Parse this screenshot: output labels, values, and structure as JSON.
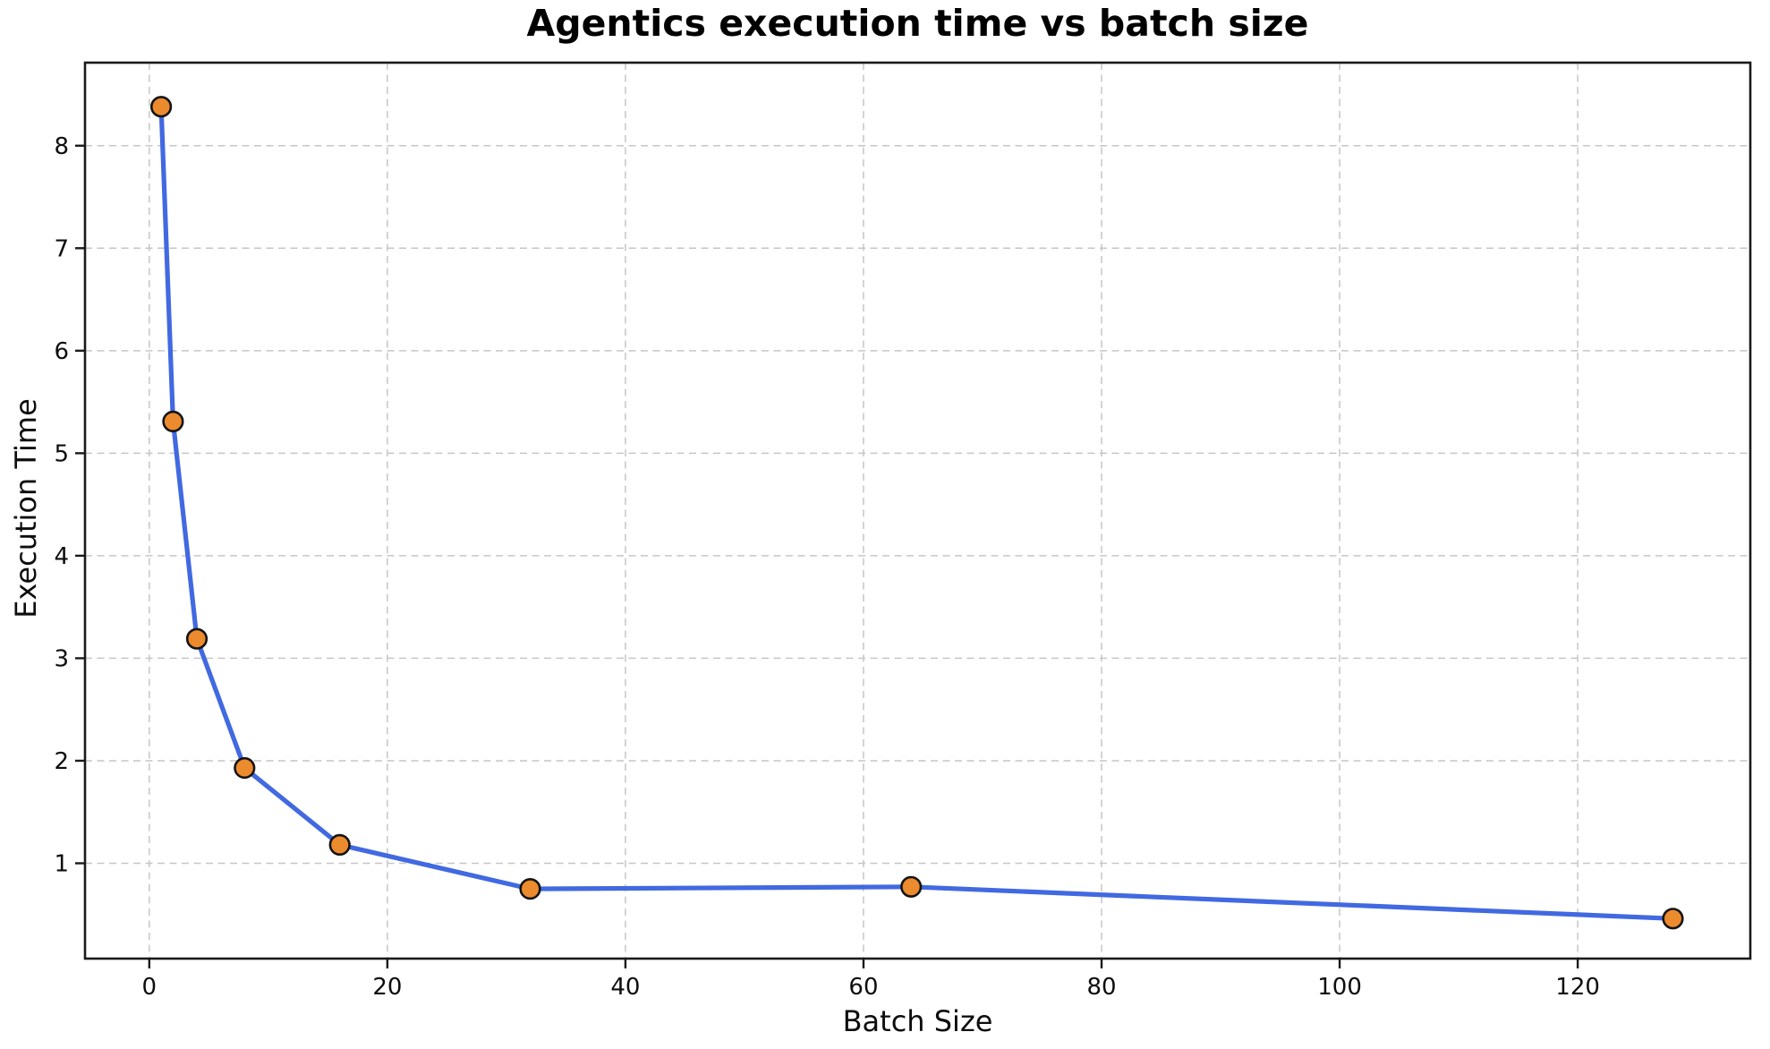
{
  "chart_data": {
    "type": "line",
    "title": "Agentics execution time vs batch size",
    "xlabel": "Batch Size",
    "ylabel": "Execution Time",
    "x": [
      1,
      2,
      4,
      8,
      16,
      32,
      64,
      128
    ],
    "series": [
      {
        "name": "Execution Time",
        "values": [
          8.38,
          5.31,
          3.19,
          1.93,
          1.18,
          0.75,
          0.77,
          0.46
        ]
      }
    ],
    "xlim": [
      -5.4,
      134.5
    ],
    "ylim": [
      0.07,
      8.81
    ],
    "x_ticks": [
      0,
      20,
      40,
      60,
      80,
      100,
      120
    ],
    "y_ticks": [
      1,
      2,
      3,
      4,
      5,
      6,
      7,
      8
    ],
    "grid": "dashed",
    "legend": "none",
    "colors": {
      "line": "#4169e1",
      "marker_fill": "#ec8a2e",
      "marker_edge": "#141414",
      "grid": "#c6c6c6",
      "spine": "#1a1a1a",
      "tick_text": "#0d0d0d",
      "background": "#ffffff"
    }
  }
}
